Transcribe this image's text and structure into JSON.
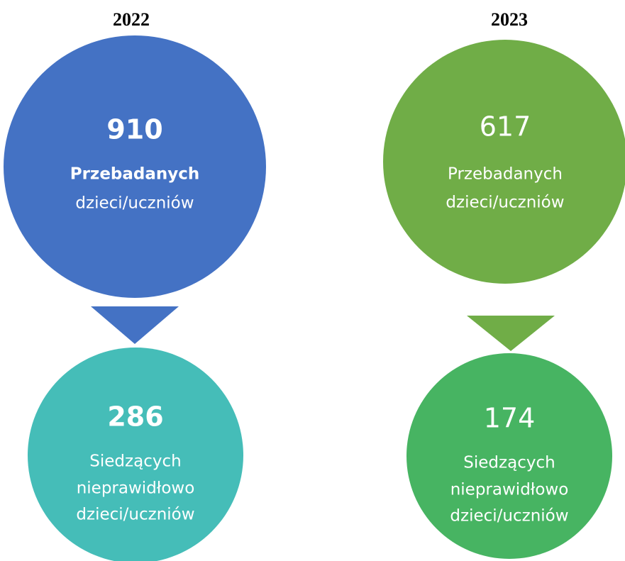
{
  "panels": [
    {
      "year": "2022",
      "top": {
        "value": "910",
        "lines": [
          "Przebadanych",
          "dzieci/uczniów"
        ]
      },
      "bottom": {
        "value": "286",
        "lines": [
          "Siedzących",
          "nieprawidłowo",
          "dzieci/uczniów"
        ]
      }
    },
    {
      "year": "2023",
      "top": {
        "value": "617",
        "lines": [
          "Przebadanych",
          "dzieci/uczniów"
        ]
      },
      "bottom": {
        "value": "174",
        "lines": [
          "Siedzących",
          "nieprawidłowo",
          "dzieci/uczniów"
        ]
      }
    }
  ]
}
